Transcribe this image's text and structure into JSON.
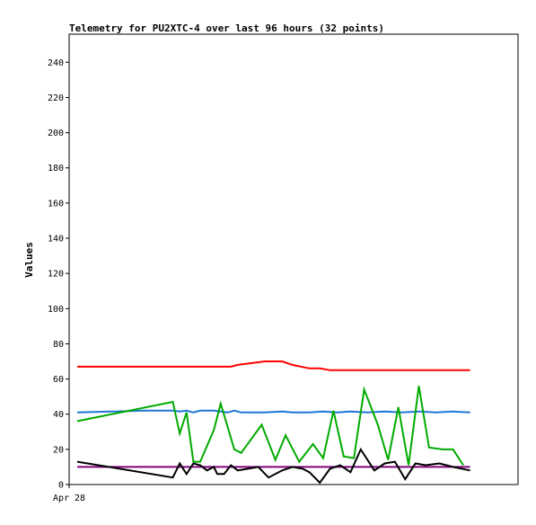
{
  "chart_data": {
    "type": "line",
    "title": "Telemetry for PU2XTC-4 over last 96 hours (32 points)",
    "ylabel": "Values",
    "xlabel": "",
    "x_tick_labels": [
      {
        "x": 0,
        "label": "Apr 28"
      }
    ],
    "ylim": [
      0,
      256
    ],
    "xlim": [
      0,
      118
    ],
    "yticks": [
      0,
      20,
      40,
      60,
      80,
      100,
      120,
      140,
      160,
      180,
      200,
      220,
      240
    ],
    "grid": false,
    "legend": "none",
    "series": [
      {
        "color": "#ff0000",
        "points": [
          [
            0,
            67
          ],
          [
            45,
            67
          ],
          [
            47,
            68
          ],
          [
            55,
            70
          ],
          [
            60,
            70
          ],
          [
            63,
            68
          ],
          [
            68,
            66
          ],
          [
            71,
            66
          ],
          [
            74,
            65
          ],
          [
            80,
            65
          ],
          [
            90,
            65
          ],
          [
            100,
            65
          ],
          [
            115,
            65
          ]
        ]
      },
      {
        "color": "#1f77d4",
        "points": [
          [
            0,
            41
          ],
          [
            10,
            41.5
          ],
          [
            20,
            42
          ],
          [
            28,
            42
          ],
          [
            30,
            41.5
          ],
          [
            32,
            42
          ],
          [
            34,
            41
          ],
          [
            36,
            42
          ],
          [
            40,
            42
          ],
          [
            42,
            41.5
          ],
          [
            44,
            41
          ],
          [
            46,
            42
          ],
          [
            48,
            41
          ],
          [
            55,
            41
          ],
          [
            60,
            41.5
          ],
          [
            63,
            41
          ],
          [
            68,
            41
          ],
          [
            72,
            41.5
          ],
          [
            76,
            41
          ],
          [
            80,
            41.5
          ],
          [
            85,
            41
          ],
          [
            90,
            41.5
          ],
          [
            95,
            41
          ],
          [
            100,
            41.5
          ],
          [
            105,
            41
          ],
          [
            110,
            41.5
          ],
          [
            115,
            41
          ]
        ]
      },
      {
        "color": "#00aa00",
        "points": [
          [
            0,
            36
          ],
          [
            28,
            47
          ],
          [
            30,
            29
          ],
          [
            32,
            41
          ],
          [
            34,
            13
          ],
          [
            36,
            13
          ],
          [
            40,
            31
          ],
          [
            42,
            46
          ],
          [
            46,
            20
          ],
          [
            48,
            18
          ],
          [
            54,
            34
          ],
          [
            58,
            14
          ],
          [
            61,
            28
          ],
          [
            65,
            13
          ],
          [
            69,
            23
          ],
          [
            72,
            15
          ],
          [
            75,
            42
          ],
          [
            78,
            16
          ],
          [
            81,
            15
          ],
          [
            84,
            54
          ],
          [
            88,
            34
          ],
          [
            91,
            14
          ],
          [
            94,
            44
          ],
          [
            97,
            11
          ],
          [
            100,
            56
          ],
          [
            103,
            21
          ],
          [
            107,
            20
          ],
          [
            110,
            20
          ],
          [
            113,
            11
          ]
        ]
      },
      {
        "color": "#800080",
        "points": [
          [
            0,
            10
          ],
          [
            115,
            10
          ]
        ]
      },
      {
        "color": "#000000",
        "points": [
          [
            0,
            13
          ],
          [
            28,
            4
          ],
          [
            30,
            12
          ],
          [
            32,
            6
          ],
          [
            34,
            12
          ],
          [
            36,
            11
          ],
          [
            38,
            8
          ],
          [
            40,
            10
          ],
          [
            41,
            6
          ],
          [
            43,
            6
          ],
          [
            45,
            11
          ],
          [
            47,
            8
          ],
          [
            50,
            9
          ],
          [
            53,
            10
          ],
          [
            56,
            4
          ],
          [
            60,
            8
          ],
          [
            63,
            10
          ],
          [
            66,
            9
          ],
          [
            68,
            7
          ],
          [
            71,
            1
          ],
          [
            74,
            9
          ],
          [
            77,
            11
          ],
          [
            80,
            7
          ],
          [
            83,
            20
          ],
          [
            87,
            8
          ],
          [
            90,
            12
          ],
          [
            93,
            13
          ],
          [
            96,
            3
          ],
          [
            99,
            12
          ],
          [
            102,
            11
          ],
          [
            106,
            12
          ],
          [
            110,
            10
          ],
          [
            115,
            8
          ]
        ]
      }
    ]
  }
}
